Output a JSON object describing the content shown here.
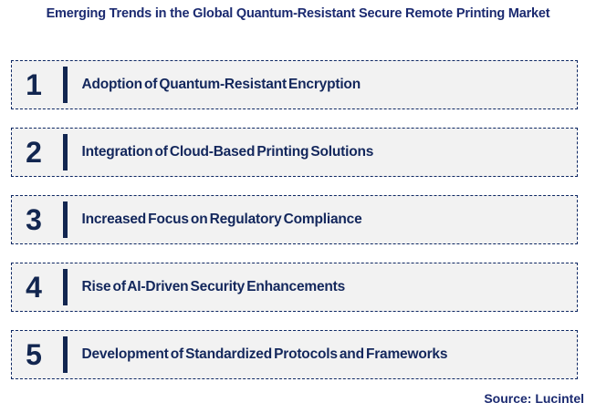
{
  "title": "Emerging Trends in the Global Quantum-Resistant Secure Remote Printing Market",
  "trends": [
    {
      "number": "1",
      "label": "Adoption of Quantum-Resistant Encryption"
    },
    {
      "number": "2",
      "label": "Integration of Cloud-Based Printing Solutions"
    },
    {
      "number": "3",
      "label": "Increased Focus on Regulatory Compliance"
    },
    {
      "number": "4",
      "label": "Rise of AI-Driven Security Enhancements"
    },
    {
      "number": "5",
      "label": "Development of Standardized Protocols and Frameworks"
    }
  ],
  "source": "Source: Lucintel",
  "colors": {
    "title_navy": "#1B2A70",
    "item_text_navy": "#13275C",
    "number_bar_navy": "#122650",
    "dashed_border_navy": "#0D2763",
    "box_background": "#F2F2F2",
    "page_background": "#FFFFFF"
  }
}
